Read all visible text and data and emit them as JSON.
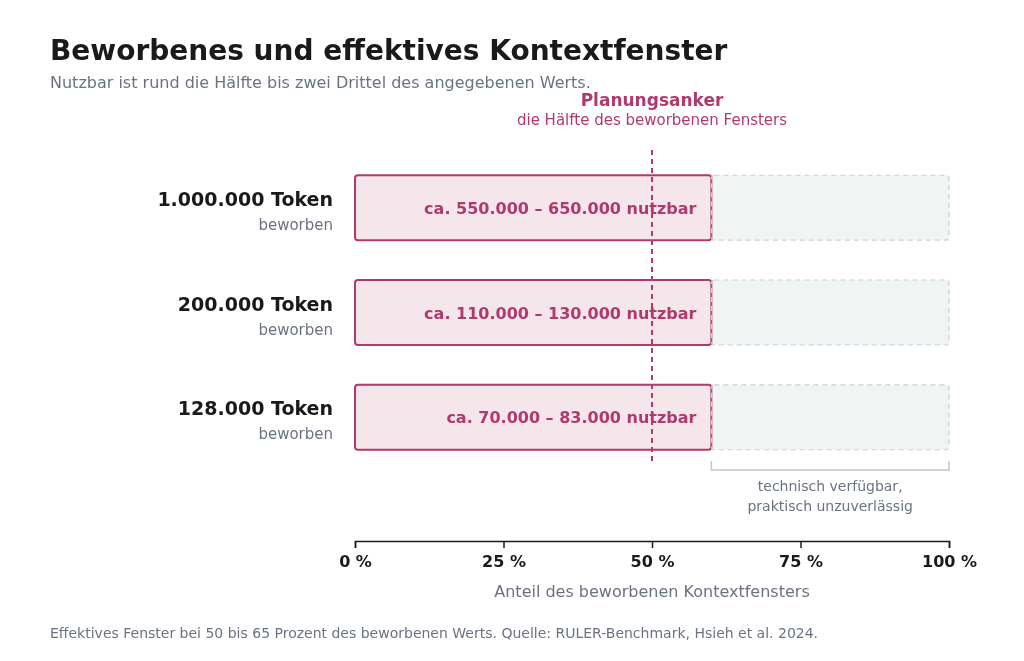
{
  "chart_data": {
    "type": "bar",
    "orientation": "horizontal",
    "stacked": true,
    "title": "Beworbenes und effektives Kontextfenster",
    "subtitle": "Nutzbar ist rund die Hälfte bis zwei Drittel des angegebenen Werts.",
    "xlabel": "Anteil des beworbenen Kontextfensters",
    "categories": [
      "1.000.000 Token",
      "200.000 Token",
      "128.000 Token"
    ],
    "series": [
      {
        "color": "#b03a6e",
        "values": [
          60,
          60,
          60
        ],
        "value_labels": [
          "ca. 550.000 – 650.000 nutzbar",
          "ca. 110.000 – 130.000 nutzbar",
          "ca. 70.000 – 83.000 nutzbar"
        ]
      },
      {
        "color": "#c5d3cb",
        "values": [
          40,
          40,
          40
        ],
        "line_style": "dashed"
      }
    ],
    "xlim": [
      0,
      100
    ],
    "xticks": [
      {
        "value": 0,
        "label": "0 %"
      },
      {
        "value": 25,
        "label": "25 %"
      },
      {
        "value": 50,
        "label": "50 %"
      },
      {
        "value": 75,
        "label": "75 %"
      },
      {
        "value": 100,
        "label": "100 %"
      }
    ],
    "ref_lines": [
      {
        "axis": "x",
        "value": 50,
        "label": "Planungsanker",
        "color": "#b03a6e",
        "line_style": "dashed"
      }
    ],
    "annotations": [
      "die Hälfte des beworbenen Fensters",
      "beworben",
      "beworben",
      "beworben",
      "technisch verfügbar, praktisch unzuverlässig",
      "Effektives Fenster bei 50 bis 65 Prozent des beworbenen Werts. Quelle: RULER-Benchmark, Hsieh et al. 2024."
    ],
    "grid": false
  }
}
